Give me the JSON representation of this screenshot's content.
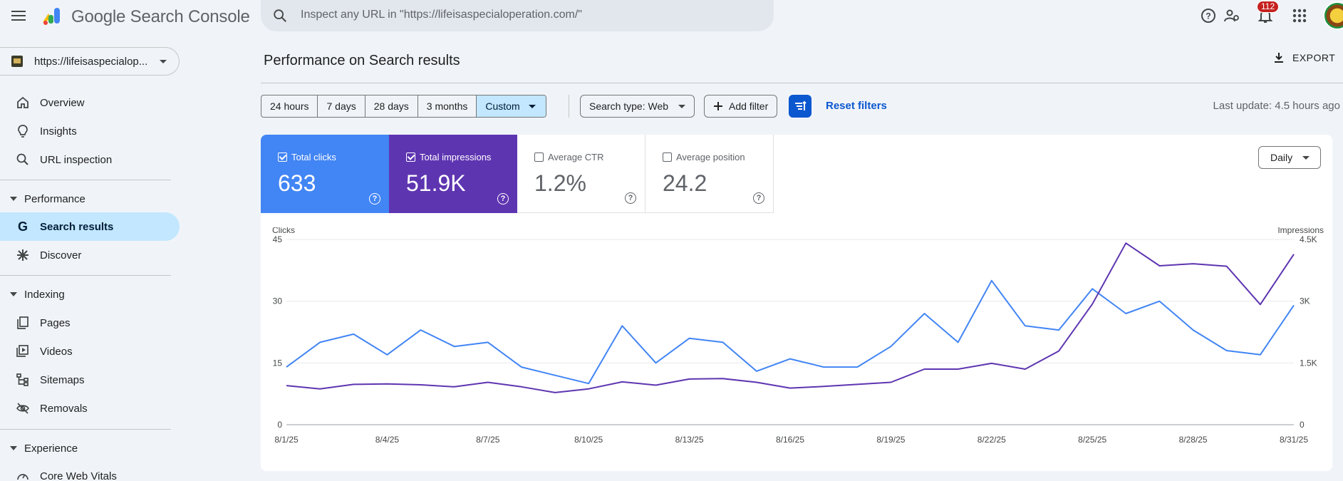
{
  "app": {
    "brand": "Google Search Console"
  },
  "search": {
    "placeholder": "Inspect any URL in \"https://lifeisaspecialoperation.com/\""
  },
  "header": {
    "notifications_count": "112"
  },
  "property": {
    "label": "https://lifeisaspecialop..."
  },
  "sidebar": {
    "top_items": [
      {
        "label": "Overview",
        "icon": "home-icon"
      },
      {
        "label": "Insights",
        "icon": "lightbulb-icon"
      },
      {
        "label": "URL inspection",
        "icon": "search-icon"
      }
    ],
    "sections": [
      {
        "title": "Performance",
        "items": [
          {
            "label": "Search results",
            "icon": "google-g-icon",
            "active": true
          },
          {
            "label": "Discover",
            "icon": "asterisk-icon"
          }
        ]
      },
      {
        "title": "Indexing",
        "items": [
          {
            "label": "Pages",
            "icon": "pages-icon"
          },
          {
            "label": "Videos",
            "icon": "video-icon"
          },
          {
            "label": "Sitemaps",
            "icon": "sitemap-icon"
          },
          {
            "label": "Removals",
            "icon": "removals-icon"
          }
        ]
      },
      {
        "title": "Experience",
        "items": [
          {
            "label": "Core Web Vitals",
            "icon": "gauge-icon"
          }
        ]
      }
    ]
  },
  "main": {
    "title": "Performance on Search results",
    "export_label": "EXPORT",
    "ranges": [
      "24 hours",
      "7 days",
      "28 days",
      "3 months",
      "Custom"
    ],
    "selected_range": "Custom",
    "search_type": "Search type: Web",
    "add_filter": "Add filter",
    "reset_filters": "Reset filters",
    "last_update": "Last update: 4.5 hours ago",
    "granularity": "Daily"
  },
  "metrics": [
    {
      "label": "Total clicks",
      "value": "633",
      "checked": true
    },
    {
      "label": "Total impressions",
      "value": "51.9K",
      "checked": true
    },
    {
      "label": "Average CTR",
      "value": "1.2%",
      "checked": false
    },
    {
      "label": "Average position",
      "value": "24.2",
      "checked": false
    }
  ],
  "colors": {
    "clicks": "#4285f4",
    "impressions": "#5e35b1",
    "accent": "#0b57d0"
  },
  "chart_data": {
    "type": "line",
    "left_axis_label": "Clicks",
    "right_axis_label": "Impressions",
    "left_ticks": [
      "45",
      "30",
      "15",
      "0"
    ],
    "right_ticks": [
      "4.5K",
      "3K",
      "1.5K",
      "0"
    ],
    "left_ylim": [
      0,
      45
    ],
    "right_ylim": [
      0,
      4500
    ],
    "x_tick_labels": [
      "8/1/25",
      "8/4/25",
      "8/7/25",
      "8/10/25",
      "8/13/25",
      "8/16/25",
      "8/19/25",
      "8/22/25",
      "8/25/25",
      "8/28/25",
      "8/31/25"
    ],
    "x": [
      "8/1/25",
      "8/2/25",
      "8/3/25",
      "8/4/25",
      "8/5/25",
      "8/6/25",
      "8/7/25",
      "8/8/25",
      "8/9/25",
      "8/10/25",
      "8/11/25",
      "8/12/25",
      "8/13/25",
      "8/14/25",
      "8/15/25",
      "8/16/25",
      "8/17/25",
      "8/18/25",
      "8/19/25",
      "8/20/25",
      "8/21/25",
      "8/22/25",
      "8/23/25",
      "8/24/25",
      "8/25/25",
      "8/26/25",
      "8/27/25",
      "8/28/25",
      "8/29/25",
      "8/30/25",
      "8/31/25"
    ],
    "series": [
      {
        "name": "Clicks",
        "axis": "left",
        "values": [
          14,
          20,
          22,
          17,
          23,
          19,
          20,
          14,
          12,
          10,
          24,
          15,
          21,
          20,
          13,
          16,
          14,
          14,
          19,
          27,
          20,
          35,
          24,
          23,
          33,
          27,
          30,
          23,
          18,
          17,
          29
        ]
      },
      {
        "name": "Impressions",
        "axis": "right",
        "values": [
          950,
          870,
          980,
          990,
          970,
          920,
          1030,
          920,
          780,
          870,
          1040,
          960,
          1110,
          1120,
          1030,
          890,
          930,
          980,
          1030,
          1350,
          1350,
          1490,
          1350,
          1790,
          2930,
          4410,
          3860,
          3910,
          3850,
          2920,
          4140
        ]
      }
    ],
    "grid": true,
    "legend": "none"
  }
}
